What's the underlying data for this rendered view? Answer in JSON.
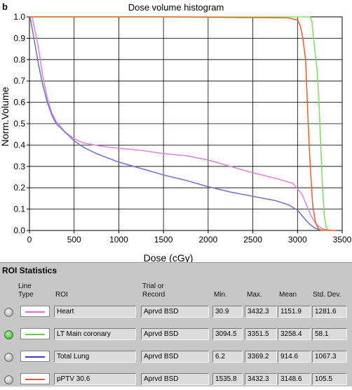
{
  "panel_label": "b",
  "chart_data": {
    "type": "line",
    "title": "Dose volume histogram",
    "xlabel": "Dose (cGy)",
    "ylabel": "Norm.Volume",
    "xlim": [
      0,
      3500
    ],
    "ylim": [
      0,
      1.0
    ],
    "x_ticks": [
      "0",
      "500",
      "1000",
      "1500",
      "2000",
      "2500",
      "3000",
      "3500"
    ],
    "y_ticks": [
      "0.0",
      "0.1",
      "0.2",
      "0.3",
      "0.4",
      "0.5",
      "0.6",
      "0.7",
      "0.8",
      "0.9",
      "1.0"
    ],
    "grid": true,
    "series": [
      {
        "name": "Heart",
        "color": "#dd88dd",
        "points": [
          [
            30,
            1.0
          ],
          [
            100,
            0.86
          ],
          [
            150,
            0.72
          ],
          [
            200,
            0.62
          ],
          [
            250,
            0.55
          ],
          [
            300,
            0.51
          ],
          [
            400,
            0.46
          ],
          [
            500,
            0.43
          ],
          [
            600,
            0.41
          ],
          [
            800,
            0.395
          ],
          [
            1000,
            0.385
          ],
          [
            1250,
            0.375
          ],
          [
            1500,
            0.36
          ],
          [
            1750,
            0.35
          ],
          [
            2000,
            0.33
          ],
          [
            2250,
            0.3
          ],
          [
            2500,
            0.27
          ],
          [
            2750,
            0.245
          ],
          [
            2950,
            0.22
          ],
          [
            3050,
            0.17
          ],
          [
            3100,
            0.12
          ],
          [
            3150,
            0.07
          ],
          [
            3200,
            0.035
          ],
          [
            3250,
            0.015
          ],
          [
            3300,
            0.005
          ],
          [
            3432,
            0.0
          ]
        ]
      },
      {
        "name": "LT Main coronary",
        "color": "#88dd66",
        "points": [
          [
            0,
            1.0
          ],
          [
            3094,
            1.0
          ],
          [
            3140,
            1.0
          ],
          [
            3160,
            0.98
          ],
          [
            3180,
            0.9
          ],
          [
            3200,
            0.82
          ],
          [
            3220,
            0.75
          ],
          [
            3240,
            0.6
          ],
          [
            3260,
            0.4
          ],
          [
            3280,
            0.2
          ],
          [
            3300,
            0.07
          ],
          [
            3320,
            0.015
          ],
          [
            3351,
            0.0
          ]
        ]
      },
      {
        "name": "Total Lung",
        "color": "#7777cc",
        "points": [
          [
            6,
            1.0
          ],
          [
            50,
            0.9
          ],
          [
            100,
            0.78
          ],
          [
            150,
            0.68
          ],
          [
            200,
            0.6
          ],
          [
            250,
            0.54
          ],
          [
            300,
            0.5
          ],
          [
            400,
            0.46
          ],
          [
            500,
            0.42
          ],
          [
            600,
            0.39
          ],
          [
            750,
            0.36
          ],
          [
            1000,
            0.32
          ],
          [
            1250,
            0.29
          ],
          [
            1500,
            0.26
          ],
          [
            1750,
            0.235
          ],
          [
            2000,
            0.205
          ],
          [
            2250,
            0.18
          ],
          [
            2500,
            0.16
          ],
          [
            2750,
            0.14
          ],
          [
            2900,
            0.12
          ],
          [
            3000,
            0.095
          ],
          [
            3050,
            0.07
          ],
          [
            3100,
            0.045
          ],
          [
            3150,
            0.025
          ],
          [
            3200,
            0.01
          ],
          [
            3250,
            0.003
          ],
          [
            3369,
            0.0
          ]
        ]
      },
      {
        "name": "pPTV 30.6",
        "color": "#ee6633",
        "points": [
          [
            0,
            1.0
          ],
          [
            1535,
            1.0
          ],
          [
            2900,
            0.995
          ],
          [
            3000,
            0.985
          ],
          [
            3030,
            0.96
          ],
          [
            3060,
            0.9
          ],
          [
            3090,
            0.8
          ],
          [
            3110,
            0.6
          ],
          [
            3130,
            0.4
          ],
          [
            3150,
            0.25
          ],
          [
            3170,
            0.12
          ],
          [
            3200,
            0.04
          ],
          [
            3230,
            0.01
          ],
          [
            3260,
            0.002
          ],
          [
            3432,
            0.0
          ]
        ]
      }
    ]
  },
  "roi_statistics": {
    "title": "ROI Statistics",
    "headers": {
      "line_type": "Line\nType",
      "roi": "ROI",
      "trial": "Trial or\nRecord",
      "min": "Min.",
      "max": "Max.",
      "mean": "Mean",
      "std": "Std. Dev."
    },
    "rows": [
      {
        "selected": false,
        "color": "#dd66dd",
        "roi": "Heart",
        "trial": "Aprvd BSD",
        "min": "30.9",
        "max": "3432.3",
        "mean": "1151.9",
        "std": "1281.6"
      },
      {
        "selected": true,
        "color": "#66cc44",
        "roi": "LT Main coronary",
        "trial": "Aprvd BSD",
        "min": "3094.5",
        "max": "3351.5",
        "mean": "3258.4",
        "std": "58.1"
      },
      {
        "selected": false,
        "color": "#3a3acc",
        "roi": "Total Lung",
        "trial": "Aprvd BSD",
        "min": "6.2",
        "max": "3369.2",
        "mean": "914.6",
        "std": "1067.3"
      },
      {
        "selected": false,
        "color": "#ee5533",
        "roi": "pPTV 30.6",
        "trial": "Aprvd BSD",
        "min": "1535.8",
        "max": "3432.3",
        "mean": "3148.6",
        "std": "105.5"
      }
    ]
  }
}
